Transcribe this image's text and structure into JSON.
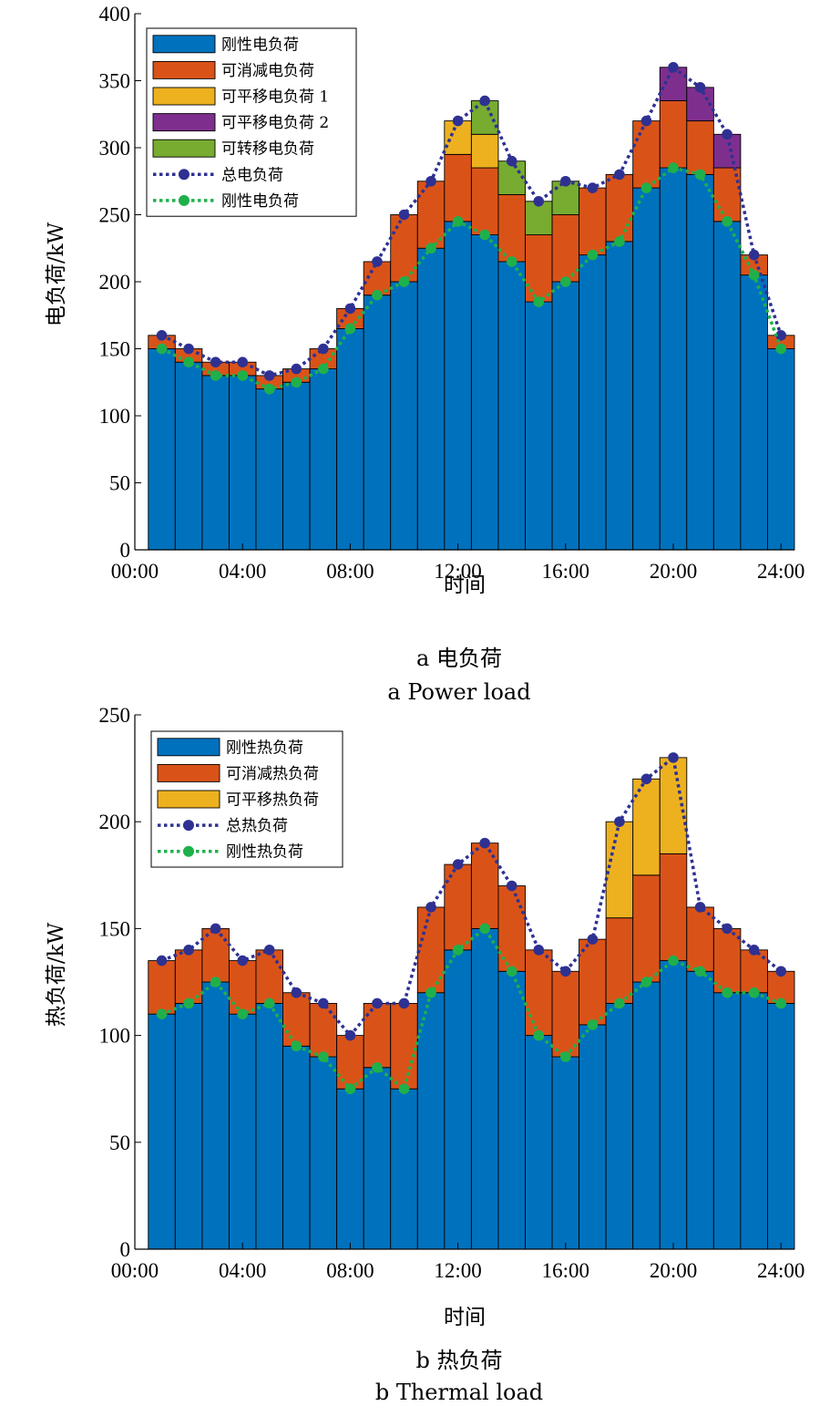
{
  "chart_data": [
    {
      "type": "bar",
      "stacked": true,
      "caption_cn": "a  电负荷",
      "caption_en": "a  Power load",
      "xlabel": "时间",
      "ylabel": "电负荷/kW",
      "ylim": [
        0,
        400
      ],
      "yticks": [
        0,
        50,
        100,
        150,
        200,
        250,
        300,
        350,
        400
      ],
      "xticks": [
        "00:00",
        "04:00",
        "08:00",
        "12:00",
        "16:00",
        "20:00",
        "24:00"
      ],
      "x": [
        1,
        2,
        3,
        4,
        5,
        6,
        7,
        8,
        9,
        10,
        11,
        12,
        13,
        14,
        15,
        16,
        17,
        18,
        19,
        20,
        21,
        22,
        23,
        24
      ],
      "legend_position": "top-left",
      "series": [
        {
          "name": "刚性电负荷",
          "kind": "bar",
          "color": "#0072BD",
          "values": [
            150,
            140,
            130,
            130,
            120,
            125,
            135,
            165,
            190,
            200,
            225,
            245,
            235,
            215,
            185,
            200,
            220,
            230,
            270,
            285,
            280,
            245,
            205,
            150
          ]
        },
        {
          "name": "可消减电负荷",
          "kind": "bar",
          "color": "#D95319",
          "values": [
            10,
            10,
            10,
            10,
            10,
            10,
            15,
            15,
            25,
            50,
            50,
            50,
            50,
            50,
            50,
            50,
            50,
            50,
            50,
            50,
            40,
            40,
            15,
            10
          ]
        },
        {
          "name": "可平移电负荷 1",
          "kind": "bar",
          "color": "#EDB120",
          "values": [
            0,
            0,
            0,
            0,
            0,
            0,
            0,
            0,
            0,
            0,
            0,
            25,
            25,
            0,
            0,
            0,
            0,
            0,
            0,
            0,
            0,
            0,
            0,
            0
          ]
        },
        {
          "name": "可平移电负荷 2",
          "kind": "bar",
          "color": "#7E2F8E",
          "values": [
            0,
            0,
            0,
            0,
            0,
            0,
            0,
            0,
            0,
            0,
            0,
            0,
            0,
            0,
            0,
            0,
            0,
            0,
            0,
            25,
            25,
            25,
            0,
            0
          ]
        },
        {
          "name": "可转移电负荷",
          "kind": "bar",
          "color": "#77AC30",
          "values": [
            0,
            0,
            0,
            0,
            0,
            0,
            0,
            0,
            0,
            0,
            0,
            0,
            25,
            25,
            25,
            25,
            0,
            0,
            0,
            0,
            0,
            0,
            0,
            0
          ]
        },
        {
          "name": "总电负荷",
          "kind": "line",
          "color": "#2E3192",
          "values": [
            160,
            150,
            140,
            140,
            130,
            135,
            150,
            180,
            215,
            250,
            275,
            320,
            335,
            290,
            260,
            275,
            270,
            280,
            320,
            360,
            345,
            310,
            220,
            160
          ]
        },
        {
          "name": "刚性电负荷",
          "kind": "line",
          "color": "#1FB04B",
          "values": [
            150,
            140,
            130,
            130,
            120,
            125,
            135,
            165,
            190,
            200,
            225,
            245,
            235,
            215,
            185,
            200,
            220,
            230,
            270,
            285,
            280,
            245,
            205,
            150
          ]
        }
      ]
    },
    {
      "type": "bar",
      "stacked": true,
      "caption_cn": "b  热负荷",
      "caption_en": "b  Thermal load",
      "xlabel": "时间",
      "ylabel": "热负荷/kW",
      "ylim": [
        0,
        250
      ],
      "yticks": [
        0,
        50,
        100,
        150,
        200,
        250
      ],
      "xticks": [
        "00:00",
        "04:00",
        "08:00",
        "12:00",
        "16:00",
        "20:00",
        "24:00"
      ],
      "x": [
        1,
        2,
        3,
        4,
        5,
        6,
        7,
        8,
        9,
        10,
        11,
        12,
        13,
        14,
        15,
        16,
        17,
        18,
        19,
        20,
        21,
        22,
        23,
        24
      ],
      "legend_position": "top-left",
      "series": [
        {
          "name": "刚性热负荷",
          "kind": "bar",
          "color": "#0072BD",
          "values": [
            110,
            115,
            125,
            110,
            115,
            95,
            90,
            75,
            85,
            75,
            120,
            140,
            150,
            130,
            100,
            90,
            105,
            115,
            125,
            135,
            130,
            120,
            120,
            115
          ]
        },
        {
          "name": "可消减热负荷",
          "kind": "bar",
          "color": "#D95319",
          "values": [
            25,
            25,
            25,
            25,
            25,
            25,
            25,
            25,
            30,
            40,
            40,
            40,
            40,
            40,
            40,
            40,
            40,
            40,
            50,
            50,
            30,
            30,
            20,
            15
          ]
        },
        {
          "name": "可平移热负荷",
          "kind": "bar",
          "color": "#EDB120",
          "values": [
            0,
            0,
            0,
            0,
            0,
            0,
            0,
            0,
            0,
            0,
            0,
            0,
            0,
            0,
            0,
            0,
            0,
            45,
            45,
            45,
            0,
            0,
            0,
            0
          ]
        },
        {
          "name": "总热负荷",
          "kind": "line",
          "color": "#2E3192",
          "values": [
            135,
            140,
            150,
            135,
            140,
            120,
            115,
            100,
            115,
            115,
            160,
            180,
            190,
            170,
            140,
            130,
            145,
            200,
            220,
            230,
            160,
            150,
            140,
            130
          ]
        },
        {
          "name": "刚性热负荷",
          "kind": "line",
          "color": "#1FB04B",
          "values": [
            110,
            115,
            125,
            110,
            115,
            95,
            90,
            75,
            85,
            75,
            120,
            140,
            150,
            130,
            100,
            90,
            105,
            115,
            125,
            135,
            130,
            120,
            120,
            115
          ]
        }
      ]
    }
  ]
}
